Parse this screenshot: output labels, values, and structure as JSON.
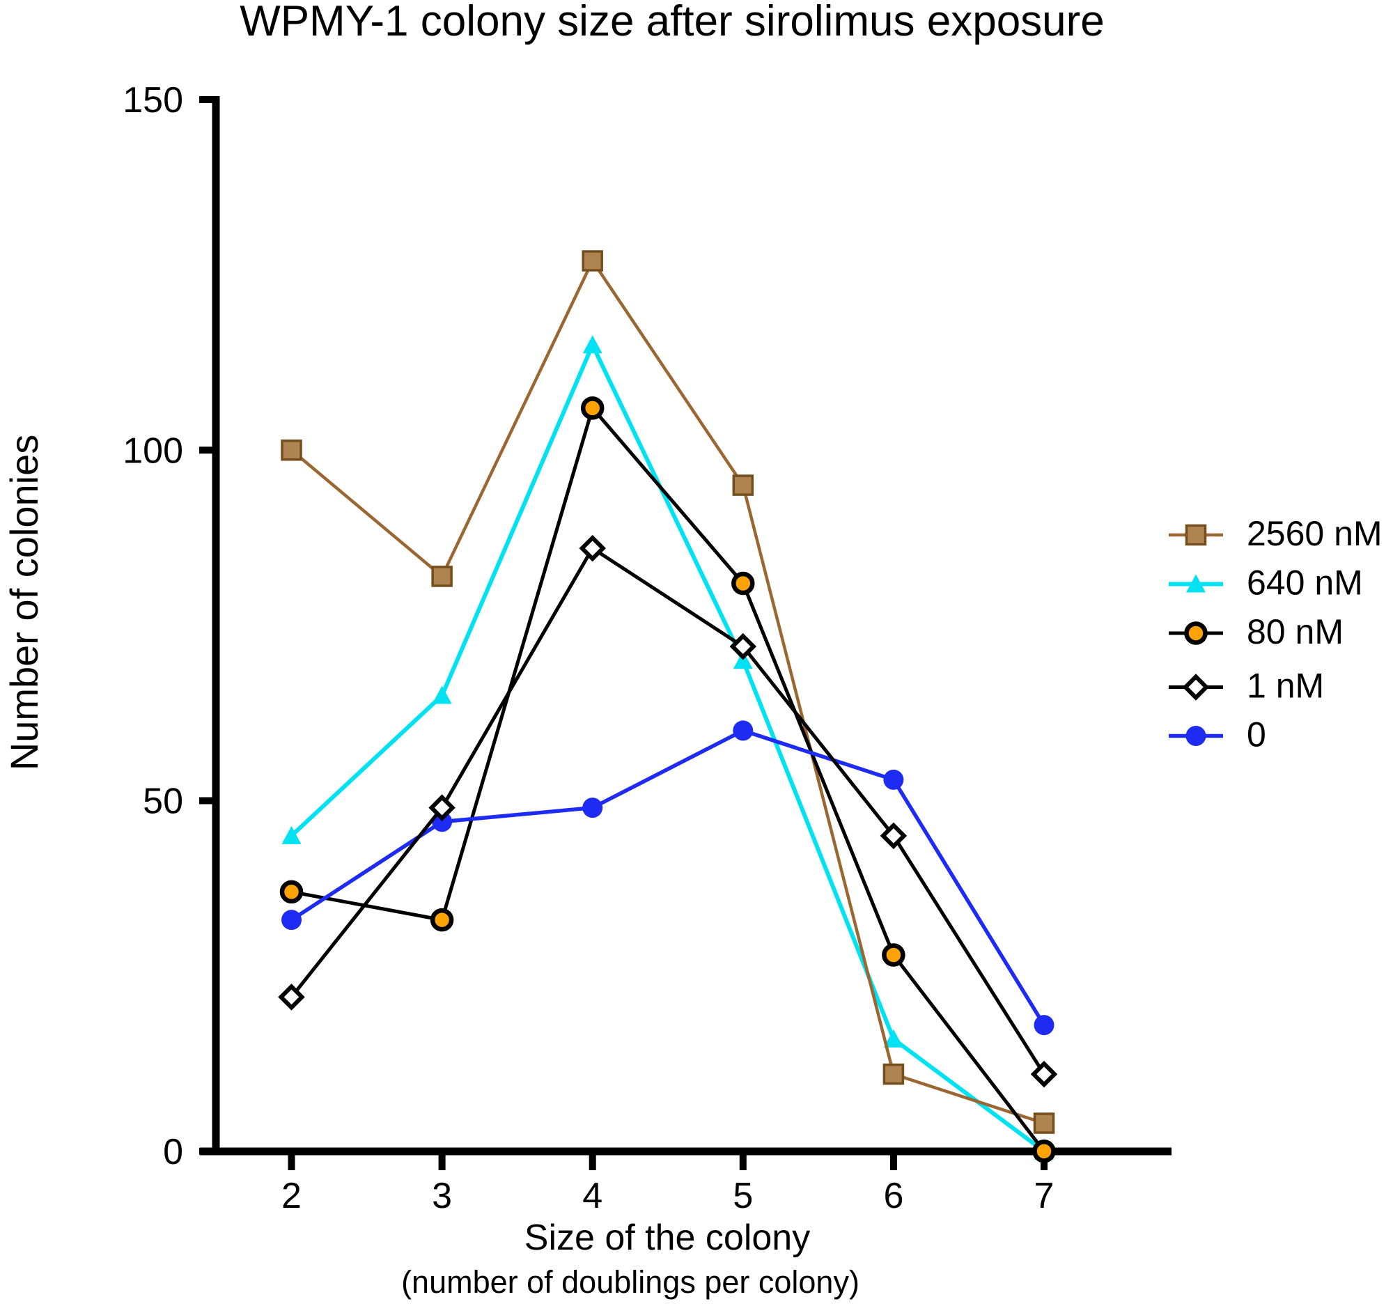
{
  "chart_data": {
    "type": "line",
    "title": "WPMY-1 colony size after sirolimus exposure",
    "xlabel": "Size of the colony",
    "xlabel_line2": "(number of doublings per colony)",
    "ylabel": "Number of colonies",
    "x": [
      2,
      3,
      4,
      5,
      6,
      7
    ],
    "xlim": [
      2,
      7
    ],
    "ylim": [
      0,
      150
    ],
    "yticks": [
      0,
      50,
      100,
      150
    ],
    "xticks": [
      2,
      3,
      4,
      5,
      6,
      7
    ],
    "grid": false,
    "legend_position": "right",
    "background": "#ffffff",
    "axis_color": "#000000",
    "series": [
      {
        "name": "2560 nM",
        "marker": "square",
        "color": "#9A6733",
        "marker_fill": "#B08450",
        "marker_edge": "#754E1E",
        "values": [
          100,
          82,
          127,
          95,
          11,
          4
        ]
      },
      {
        "name": "640 nM",
        "marker": "triangle",
        "color": "#00E2F2",
        "marker_fill": "#00E2F2",
        "marker_edge": "#00E2F2",
        "values": [
          45,
          65,
          115,
          70,
          16,
          0
        ]
      },
      {
        "name": "80 nM",
        "marker": "circle-open",
        "color": "#000000",
        "marker_fill": "#FFA303",
        "marker_edge": "#000000",
        "values": [
          37,
          33,
          106,
          81,
          28,
          0
        ]
      },
      {
        "name": "1 nM",
        "marker": "diamond-open",
        "color": "#000000",
        "marker_fill": "#FFFFFF",
        "marker_edge": "#000000",
        "values": [
          22,
          49,
          86,
          72,
          45,
          11
        ]
      },
      {
        "name": "0",
        "marker": "circle",
        "color": "#1E2BF2",
        "marker_fill": "#1E2BF2",
        "marker_edge": "#1E2BF2",
        "values": [
          33,
          47,
          49,
          60,
          53,
          18
        ]
      }
    ]
  }
}
